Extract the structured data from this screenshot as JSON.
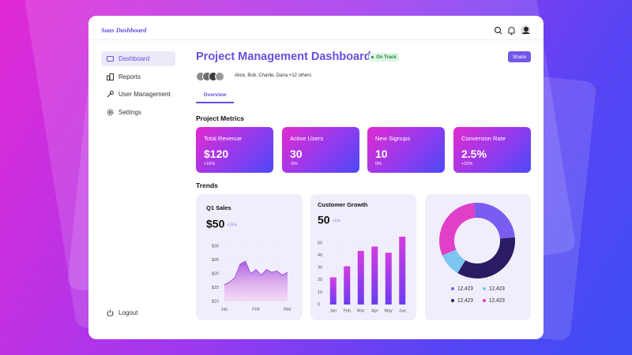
{
  "header": {
    "brand": "Saas Dashboard"
  },
  "sidebar": {
    "items": [
      "Dashboard",
      "Reports",
      "User Management",
      "Settings"
    ],
    "logout": "Logout"
  },
  "page": {
    "title": "Project Management Dashboard",
    "status": "On Track",
    "share": "Share",
    "members": "Alice, Bob, Charlie, Dana +12 others",
    "tab": "Overview"
  },
  "metrics": {
    "title": "Project Metrics",
    "cards": [
      {
        "label": "Total Revenue",
        "value": "$120",
        "change": "+16%"
      },
      {
        "label": "Active Users",
        "value": "30",
        "change": "-5%"
      },
      {
        "label": "New Signups",
        "value": "10",
        "change": "0%"
      },
      {
        "label": "Conversion Rate",
        "value": "2.5%",
        "change": "+10%"
      }
    ]
  },
  "trends": {
    "title": "Trends"
  },
  "chart_data": [
    {
      "type": "area",
      "title": "Q1 Sales",
      "headline": "$50",
      "change": "+15%",
      "categories": [
        "Jan",
        null,
        null,
        null,
        null,
        null,
        "Feb",
        null,
        null,
        null,
        null,
        null,
        "Mar"
      ],
      "values": [
        16,
        17,
        18.5,
        23.5,
        24.5,
        20,
        21.5,
        19.5,
        21.5,
        20.5,
        21,
        19.5,
        20.5
      ],
      "color": "#9b4fe0",
      "ylim": [
        10,
        30
      ],
      "yticks": [
        {
          "value": 10,
          "label": "$10"
        },
        {
          "value": 15,
          "label": "$15"
        },
        {
          "value": 20,
          "label": "$20"
        },
        {
          "value": 25,
          "label": "$25"
        },
        {
          "value": 30,
          "label": "$30"
        }
      ],
      "grid": true
    },
    {
      "type": "bar",
      "title": "Customer Growth",
      "headline": "50",
      "change": "+5%",
      "categories": [
        "Jan",
        "Feb",
        "Mar",
        "Apr",
        "May",
        "Jun"
      ],
      "values": [
        22,
        31,
        43.5,
        47,
        42,
        55
      ],
      "color": "#c23ce6",
      "ylim": [
        0,
        55
      ],
      "yticks": [
        0,
        10,
        20,
        30,
        40,
        50
      ],
      "grid": true
    },
    {
      "type": "donut",
      "values": [
        25,
        35,
        10,
        30
      ],
      "colors": [
        "#7b5cf0",
        "#2b1b63",
        "#7cc6f0",
        "#e040c8"
      ],
      "legend_labels": [
        "12,423",
        "12,423",
        "12,423",
        "12,423"
      ],
      "legend_colors": [
        "#7b5cf0",
        "#7cc6f0",
        "#2b1b63",
        "#e040c8"
      ]
    }
  ]
}
